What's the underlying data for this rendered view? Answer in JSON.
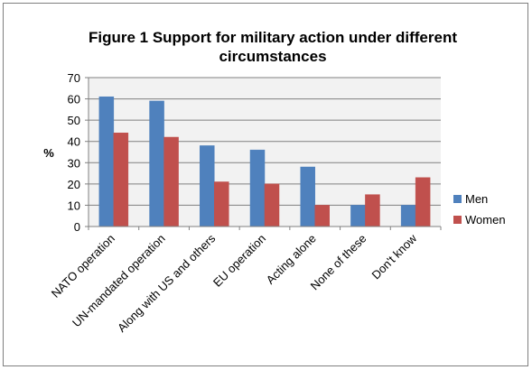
{
  "chart_data": {
    "type": "bar",
    "title_lines": [
      "Figure 1 Support for military action under different",
      "circumstances"
    ],
    "ylabel": "%",
    "xlabel": "",
    "categories": [
      "NATO operation",
      "UN-mandated operation",
      "Along with US and others",
      "EU operation",
      "Acting alone",
      "None of these",
      "Don't know"
    ],
    "series": [
      {
        "name": "Men",
        "color": "#4f81bd",
        "values": [
          61,
          59,
          38,
          36,
          28,
          10,
          10
        ]
      },
      {
        "name": "Women",
        "color": "#c0504d",
        "values": [
          44,
          42,
          21,
          20,
          10,
          15,
          23
        ]
      }
    ],
    "ylim": [
      0,
      70
    ],
    "y_ticks": [
      0,
      10,
      20,
      30,
      40,
      50,
      60,
      70
    ],
    "grid": true,
    "legend_position": "right",
    "plot_area_color": "#f2f2f2",
    "gridline_color": "#808080"
  }
}
